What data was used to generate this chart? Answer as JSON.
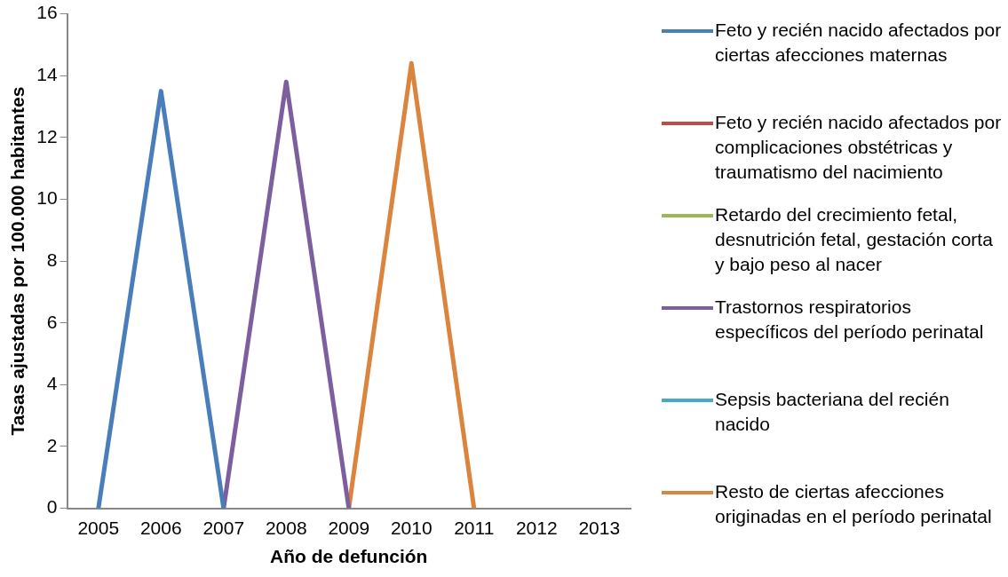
{
  "chart_data": {
    "type": "line",
    "xlabel": "Año de defunción",
    "ylabel": "Tasas ajustadas por 100.000 habitantes",
    "categories": [
      "2005",
      "2006",
      "2007",
      "2008",
      "2009",
      "2010",
      "2011",
      "2012",
      "2013"
    ],
    "ylim": [
      0,
      16
    ],
    "yticks": [
      0,
      2,
      4,
      6,
      8,
      10,
      12,
      14,
      16
    ],
    "grid": false,
    "legend": "right",
    "marker": "none",
    "line_style": "solid",
    "series": [
      {
        "name": "Feto y recién nacido afectados por ciertas afecciones maternas",
        "color": "#4a7ebb",
        "values": [
          0,
          13.5,
          0,
          null,
          null,
          null,
          null,
          null,
          null
        ]
      },
      {
        "name": "Feto y recién nacido afectados por complicaciones obstétricas y traumatismo del nacimiento",
        "color": "#be4b48",
        "values": [
          null,
          null,
          null,
          null,
          null,
          null,
          null,
          null,
          null
        ]
      },
      {
        "name": "Retardo del crecimiento fetal, desnutrición fetal, gestación corta y bajo peso al nacer",
        "color": "#98b954",
        "values": [
          null,
          null,
          null,
          null,
          null,
          null,
          null,
          null,
          null
        ]
      },
      {
        "name": "Trastornos respiratorios específicos del período perinatal",
        "color": "#7d5fa0",
        "values": [
          null,
          null,
          0,
          13.8,
          0,
          null,
          null,
          null,
          null
        ]
      },
      {
        "name": "Sepsis bacteriana del recién nacido",
        "color": "#46aac5",
        "values": [
          null,
          null,
          null,
          null,
          null,
          null,
          null,
          null,
          null
        ]
      },
      {
        "name": "Resto de ciertas afecciones originadas en el período perinatal",
        "color": "#db843d",
        "values": [
          null,
          null,
          null,
          null,
          0,
          14.4,
          0,
          null,
          null
        ]
      }
    ]
  }
}
